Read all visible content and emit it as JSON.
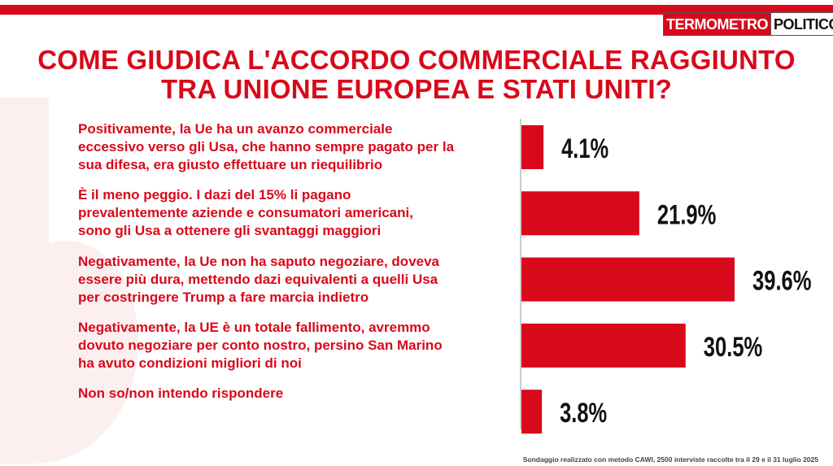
{
  "logo": {
    "part1": "TERMOMETRO",
    "part2": "POLITICO"
  },
  "title": {
    "line1": "COME GIUDICA L'ACCORDO COMMERCIALE RAGGIUNTO",
    "line2": "TRA UNIONE EUROPEA E STATI UNITI?"
  },
  "colors": {
    "accent": "#d8091a",
    "value_text": "#111111",
    "axis": "#999999"
  },
  "chart_data": {
    "type": "bar",
    "orientation": "horizontal",
    "categories": [
      "Positivamente, la Ue ha un avanzo commerciale eccessivo verso gli Usa, che hanno sempre pagato per la sua difesa, era giusto effettuare un riequilibrio",
      "È il meno peggio. I dazi del 15% li pagano prevalentemente aziende e consumatori americani, sono gli Usa a ottenere gli svantaggi maggiori",
      "Negativamente, la Ue non ha saputo negoziare, doveva essere più dura, mettendo dazi equivalenti a quelli Usa per costringere Trump a fare marcia indietro",
      "Negativamente, la UE è un totale fallimento, avremmo dovuto negoziare per conto nostro, persino San Marino ha avuto condizioni migliori di noi",
      "Non so/non intendo rispondere"
    ],
    "category_lines": [
      [
        "Positivamente, la Ue ha un avanzo commerciale",
        "eccessivo verso gli Usa, che hanno sempre pagato per la",
        "sua difesa, era giusto effettuare un riequilibrio"
      ],
      [
        "È il meno peggio. I dazi del 15% li pagano",
        "prevalentemente aziende e consumatori americani,",
        "sono gli Usa a ottenere gli svantaggi maggiori"
      ],
      [
        "Negativamente, la Ue non ha saputo negoziare, doveva",
        "essere più dura, mettendo dazi equivalenti a quelli Usa",
        "per costringere Trump a fare marcia indietro"
      ],
      [
        "Negativamente, la UE è un totale fallimento, avremmo",
        "dovuto negoziare per conto nostro, persino San Marino",
        "ha avuto condizioni migliori di noi"
      ],
      [
        "Non so/non intendo rispondere"
      ]
    ],
    "values": [
      4.1,
      21.9,
      39.6,
      30.5,
      3.8
    ],
    "value_labels": [
      "4.1%",
      "21.9%",
      "39.6%",
      "30.5%",
      "3.8%"
    ],
    "title": "COME GIUDICA L'ACCORDO COMMERCIALE RAGGIUNTO TRA UNIONE EUROPEA E STATI UNITI?",
    "xlabel": "",
    "ylabel": "",
    "xlim": [
      0,
      45
    ],
    "grid": false,
    "legend": "none"
  },
  "footer": "Sondaggio realizzato con metodo CAWI, 2500 interviste raccolte tra il 29 e il 31 luglio 2025"
}
